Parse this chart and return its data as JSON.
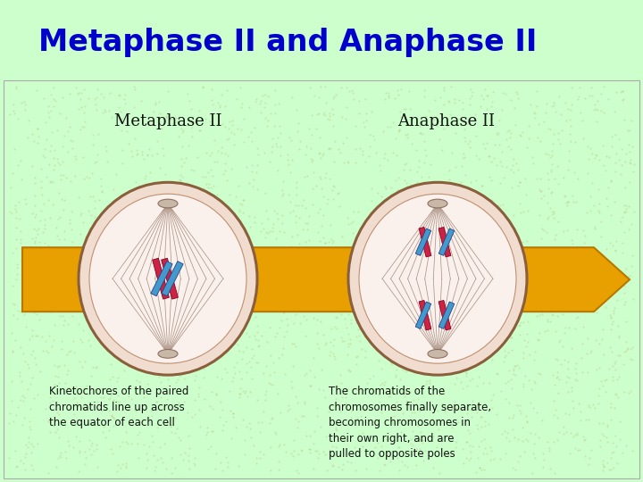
{
  "title": "Metaphase II and Anaphase II",
  "title_color": "#0000CC",
  "title_bg": "#ccffcc",
  "content_bg": "#d4c98a",
  "metaphase_label": "Metaphase II",
  "anaphase_label": "Anaphase II",
  "arrow_color": "#e8a000",
  "arrow_edge": "#b87800",
  "cell_outer_fill": "#f0ddd0",
  "cell_outer_edge": "#8B5E3C",
  "cell_inner_fill": "#faf0ec",
  "cell_inner_edge": "#c09070",
  "spindle_color": "#9a8070",
  "pole_cap_fill": "#c8b8a8",
  "pole_cap_edge": "#907060",
  "red_chr": "#cc2244",
  "red_chr_edge": "#880022",
  "blue_chr": "#4499cc",
  "blue_chr_edge": "#224488",
  "label_color": "#111111",
  "caption_color": "#111111",
  "caption_left": "Kinetochores of the paired\nchromatids line up across\nthe equator of each cell",
  "caption_right": "The chromatids of the\nchromosomes finally separate,\nbecoming chromosomes in\ntheir own right, and are\npulled to opposite poles",
  "fig_width": 7.2,
  "fig_height": 5.4
}
